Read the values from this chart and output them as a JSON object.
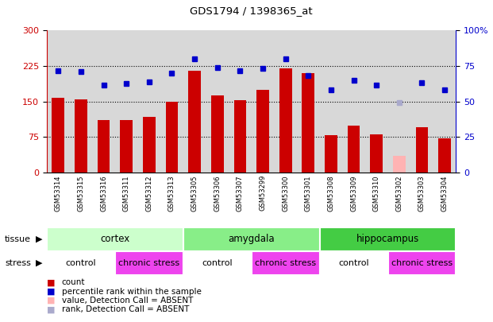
{
  "title": "GDS1794 / 1398365_at",
  "samples": [
    "GSM53314",
    "GSM53315",
    "GSM53316",
    "GSM53311",
    "GSM53312",
    "GSM53313",
    "GSM53305",
    "GSM53306",
    "GSM53307",
    "GSM53299",
    "GSM53300",
    "GSM53301",
    "GSM53308",
    "GSM53309",
    "GSM53310",
    "GSM53302",
    "GSM53303",
    "GSM53304"
  ],
  "bar_values": [
    158,
    155,
    110,
    110,
    118,
    150,
    215,
    163,
    152,
    175,
    220,
    210,
    78,
    98,
    80,
    35,
    95,
    72
  ],
  "bar_colors": [
    "#cc0000",
    "#cc0000",
    "#cc0000",
    "#cc0000",
    "#cc0000",
    "#cc0000",
    "#cc0000",
    "#cc0000",
    "#cc0000",
    "#cc0000",
    "#cc0000",
    "#cc0000",
    "#cc0000",
    "#cc0000",
    "#cc0000",
    "#ffb3b3",
    "#cc0000",
    "#cc0000"
  ],
  "dot_values_left_scale": [
    215,
    213,
    185,
    188,
    192,
    210,
    240,
    222,
    215,
    220,
    240,
    205,
    175,
    195,
    185,
    148,
    190,
    175
  ],
  "dot_colors": [
    "#0000cc",
    "#0000cc",
    "#0000cc",
    "#0000cc",
    "#0000cc",
    "#0000cc",
    "#0000cc",
    "#0000cc",
    "#0000cc",
    "#0000cc",
    "#0000cc",
    "#0000cc",
    "#0000cc",
    "#0000cc",
    "#0000cc",
    "#aaaacc",
    "#0000cc",
    "#0000cc"
  ],
  "ylim_left": [
    0,
    300
  ],
  "ylim_right": [
    0,
    100
  ],
  "yticks_left": [
    0,
    75,
    150,
    225,
    300
  ],
  "yticks_right": [
    0,
    25,
    50,
    75,
    100
  ],
  "ytick_labels_right": [
    "0",
    "25",
    "50",
    "75",
    "100%"
  ],
  "plot_bg_color": "#d8d8d8",
  "tissue_groups": [
    {
      "label": "cortex",
      "start": 0,
      "end": 6,
      "color": "#ccffcc"
    },
    {
      "label": "amygdala",
      "start": 6,
      "end": 12,
      "color": "#88ee88"
    },
    {
      "label": "hippocampus",
      "start": 12,
      "end": 18,
      "color": "#44cc44"
    }
  ],
  "stress_groups": [
    {
      "label": "control",
      "start": 0,
      "end": 3,
      "color": "#ffffff"
    },
    {
      "label": "chronic stress",
      "start": 3,
      "end": 6,
      "color": "#ee44ee"
    },
    {
      "label": "control",
      "start": 6,
      "end": 9,
      "color": "#ffffff"
    },
    {
      "label": "chronic stress",
      "start": 9,
      "end": 12,
      "color": "#ee44ee"
    },
    {
      "label": "control",
      "start": 12,
      "end": 15,
      "color": "#ffffff"
    },
    {
      "label": "chronic stress",
      "start": 15,
      "end": 18,
      "color": "#ee44ee"
    }
  ],
  "hline_values": [
    75,
    150,
    225
  ],
  "label_color_left": "#cc0000",
  "label_color_right": "#0000cc",
  "legend_items": [
    {
      "color": "#cc0000",
      "label": "count"
    },
    {
      "color": "#0000cc",
      "label": "percentile rank within the sample"
    },
    {
      "color": "#ffb3b3",
      "label": "value, Detection Call = ABSENT"
    },
    {
      "color": "#aaaacc",
      "label": "rank, Detection Call = ABSENT"
    }
  ]
}
